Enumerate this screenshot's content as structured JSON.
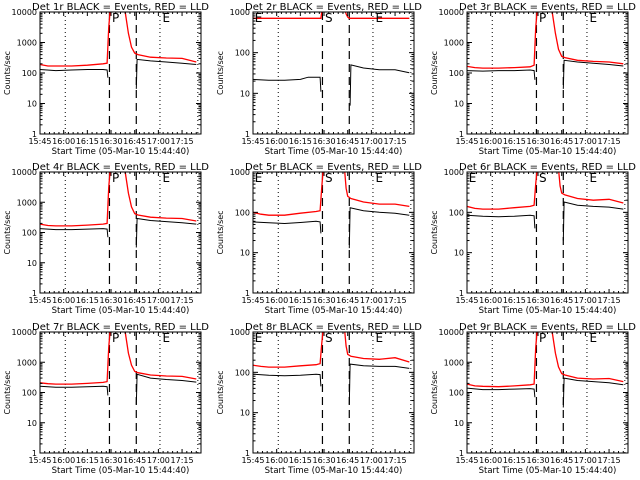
{
  "chart_data": {
    "type": "line",
    "layout": "3x3 grid",
    "x_tick_labels": [
      "15:45",
      "16:00",
      "16:15",
      "16:30",
      "16:45",
      "17:00",
      "17:15"
    ],
    "x_ticks_minutes_from_1545": [
      0,
      15,
      30,
      45,
      60,
      75,
      90
    ],
    "xlim_minutes_from_1545": [
      0,
      102
    ],
    "xlabel": "Start Time (05-Mar-10 15:44:40)",
    "ylabel": "Counts/sec",
    "yscale": "log",
    "dashed_lines_minutes": [
      44,
      61
    ],
    "dotted_lines_minutes": [
      16,
      76,
      100
    ],
    "series_colors": {
      "events": "#000000",
      "lld": "#ff0000"
    },
    "panels": [
      {
        "title": "Det 1r BLACK = Events, RED = LLD",
        "ylim": [
          1,
          10000
        ],
        "y_tick_labels": [
          "1",
          "10",
          "100",
          "1000",
          "10000"
        ],
        "markers": [
          {
            "label": "P",
            "x": 45
          },
          {
            "label": "E",
            "x": 77
          }
        ],
        "series": [
          {
            "name": "Events",
            "x": [
              0,
              10,
              20,
              30,
              40,
              42.5,
              43,
              60.5,
              61,
              61.5,
              70,
              80,
              90,
              99
            ],
            "y": [
              130,
              120,
              125,
              130,
              130,
              125,
              70,
              null,
              30,
              280,
              250,
              230,
              210,
              190
            ]
          },
          {
            "name": "LLD",
            "x": [
              0,
              5,
              10,
              20,
              30,
              40,
              42.5,
              43.5,
              44.5,
              45.5,
              52,
              54,
              56,
              58,
              60,
              62,
              70,
              80,
              90,
              99
            ],
            "y": [
              190,
              170,
              170,
              170,
              180,
              200,
              210,
              3000,
              12000,
              20000,
              20000,
              10000,
              2000,
              700,
              450,
              400,
              330,
              310,
              300,
              230
            ]
          }
        ]
      },
      {
        "title": "Det 2r BLACK = Events, RED = LLD",
        "ylim": [
          1,
          1000
        ],
        "y_tick_labels": [
          "1",
          "10",
          "100",
          "1000"
        ],
        "markers": [
          {
            "label": "E",
            "x": 0.5
          },
          {
            "label": "S",
            "x": 45
          },
          {
            "label": "E",
            "x": 77
          }
        ],
        "series": [
          {
            "name": "Events",
            "x": [
              0,
              10,
              20,
              30,
              35,
              42.5,
              43,
              61,
              61.5,
              62,
              70,
              80,
              90,
              99
            ],
            "y": [
              22,
              21,
              21,
              22,
              25,
              25,
              11,
              null,
              5,
              50,
              42,
              38,
              38,
              32
            ]
          },
          {
            "name": "LLD",
            "x": [
              0,
              10,
              20,
              30,
              43,
              43.5,
              44,
              58,
              59,
              60,
              61,
              70,
              80,
              90,
              99
            ],
            "y": [
              700,
              700,
              700,
              700,
              700,
              1000,
              1200,
              1200,
              900,
              750,
              700,
              700,
              700,
              700,
              700
            ]
          }
        ]
      },
      {
        "title": "Det 3r BLACK = Events, RED = LLD",
        "ylim": [
          1,
          10000
        ],
        "y_tick_labels": [
          "1",
          "10",
          "100",
          "1000",
          "10000"
        ],
        "markers": [
          {
            "label": "P",
            "x": 45
          },
          {
            "label": "E",
            "x": 77
          }
        ],
        "series": [
          {
            "name": "Events",
            "x": [
              0,
              10,
              20,
              30,
              40,
              42.5,
              43,
              60.5,
              61,
              61.5,
              70,
              80,
              90,
              99
            ],
            "y": [
              120,
              115,
              120,
              120,
              125,
              120,
              60,
              null,
              30,
              260,
              230,
              210,
              190,
              170
            ]
          },
          {
            "name": "LLD",
            "x": [
              0,
              5,
              10,
              20,
              30,
              40,
              42.5,
              43.5,
              44.5,
              45.5,
              52,
              54,
              56,
              58,
              60,
              62,
              70,
              80,
              90,
              99
            ],
            "y": [
              165,
              150,
              145,
              145,
              150,
              160,
              180,
              3000,
              12000,
              20000,
              20000,
              10000,
              2000,
              600,
              350,
              320,
              260,
              240,
              230,
              200
            ]
          }
        ]
      },
      {
        "title": "Det 4r BLACK = Events, RED = LLD",
        "ylim": [
          1,
          10000
        ],
        "y_tick_labels": [
          "1",
          "10",
          "100",
          "1000",
          "10000"
        ],
        "markers": [
          {
            "label": "P",
            "x": 45
          },
          {
            "label": "E",
            "x": 77
          }
        ],
        "series": [
          {
            "name": "Events",
            "x": [
              0,
              10,
              20,
              30,
              40,
              42.5,
              43,
              60.5,
              61,
              61.5,
              70,
              80,
              90,
              99
            ],
            "y": [
              135,
              125,
              125,
              130,
              135,
              130,
              70,
              null,
              32,
              290,
              250,
              230,
              210,
              190
            ]
          },
          {
            "name": "LLD",
            "x": [
              0,
              5,
              10,
              20,
              30,
              40,
              42.5,
              43.5,
              44.5,
              45.5,
              52,
              54,
              56,
              58,
              60,
              62,
              70,
              80,
              90,
              99
            ],
            "y": [
              190,
              170,
              165,
              165,
              175,
              190,
              200,
              3000,
              12000,
              20000,
              20000,
              10000,
              2000,
              700,
              420,
              380,
              320,
              300,
              290,
              240
            ]
          }
        ]
      },
      {
        "title": "Det 5r BLACK = Events, RED = LLD",
        "ylim": [
          1,
          1000
        ],
        "y_tick_labels": [
          "1",
          "10",
          "100",
          "1000"
        ],
        "markers": [
          {
            "label": "E",
            "x": 0.5
          },
          {
            "label": "S",
            "x": 45
          },
          {
            "label": "E",
            "x": 77
          }
        ],
        "series": [
          {
            "name": "Events",
            "x": [
              0,
              10,
              20,
              30,
              40,
              42.5,
              43,
              60.5,
              61,
              61.5,
              70,
              80,
              90,
              99
            ],
            "y": [
              58,
              55,
              53,
              56,
              60,
              58,
              30,
              null,
              13,
              130,
              110,
              100,
              95,
              85
            ]
          },
          {
            "name": "LLD",
            "x": [
              0,
              5,
              10,
              20,
              30,
              40,
              42.5,
              43.5,
              44.5,
              58,
              59,
              60,
              62,
              70,
              80,
              90,
              99
            ],
            "y": [
              100,
              90,
              85,
              85,
              95,
              105,
              110,
              400,
              1200,
              1200,
              400,
              250,
              220,
              180,
              160,
              160,
              140
            ]
          }
        ]
      },
      {
        "title": "Det 6r BLACK = Events, RED = LLD",
        "ylim": [
          1,
          1000
        ],
        "y_tick_labels": [
          "1",
          "10",
          "100",
          "1000"
        ],
        "markers": [
          {
            "label": "E",
            "x": 0.5
          },
          {
            "label": "S",
            "x": 45
          },
          {
            "label": "E",
            "x": 77
          }
        ],
        "series": [
          {
            "name": "Events",
            "x": [
              0,
              10,
              20,
              30,
              40,
              42.5,
              43,
              60.5,
              61,
              61.5,
              70,
              80,
              90,
              99
            ],
            "y": [
              85,
              80,
              78,
              80,
              85,
              82,
              40,
              null,
              20,
              180,
              150,
              140,
              135,
              120
            ]
          },
          {
            "name": "LLD",
            "x": [
              0,
              5,
              10,
              20,
              30,
              40,
              42.5,
              43.5,
              44.5,
              58,
              59,
              60,
              62,
              70,
              80,
              90,
              99
            ],
            "y": [
              140,
              125,
              120,
              120,
              130,
              140,
              150,
              500,
              1200,
              1200,
              450,
              300,
              270,
              220,
              200,
              210,
              170
            ]
          }
        ]
      },
      {
        "title": "Det 7r BLACK = Events, RED = LLD",
        "ylim": [
          1,
          10000
        ],
        "y_tick_labels": [
          "1",
          "10",
          "100",
          "1000",
          "10000"
        ],
        "markers": [
          {
            "label": "P",
            "x": 45
          },
          {
            "label": "E",
            "x": 77
          }
        ],
        "series": [
          {
            "name": "Events",
            "x": [
              0,
              10,
              20,
              30,
              40,
              42.5,
              43,
              60.5,
              61,
              61.5,
              70,
              80,
              90,
              99
            ],
            "y": [
              160,
              150,
              150,
              155,
              160,
              155,
              80,
              null,
              40,
              400,
              300,
              270,
              250,
              220
            ]
          },
          {
            "name": "LLD",
            "x": [
              0,
              5,
              10,
              20,
              30,
              40,
              42.5,
              43.5,
              44.5,
              45.5,
              52,
              54,
              56,
              58,
              60,
              62,
              70,
              80,
              90,
              99
            ],
            "y": [
              210,
              195,
              190,
              190,
              200,
              215,
              230,
              3000,
              12000,
              20000,
              20000,
              10000,
              2000,
              800,
              500,
              450,
              380,
              350,
              340,
              280
            ]
          }
        ]
      },
      {
        "title": "Det 8r BLACK = Events, RED = LLD",
        "ylim": [
          1,
          1000
        ],
        "y_tick_labels": [
          "1",
          "10",
          "100",
          "1000"
        ],
        "markers": [
          {
            "label": "E",
            "x": 0.5
          },
          {
            "label": "S",
            "x": 45
          },
          {
            "label": "E",
            "x": 77
          }
        ],
        "series": [
          {
            "name": "Events",
            "x": [
              0,
              10,
              20,
              30,
              40,
              42.5,
              43,
              60.5,
              61,
              61.5,
              70,
              80,
              90,
              99
            ],
            "y": [
              90,
              85,
              82,
              85,
              90,
              88,
              45,
              null,
              16,
              160,
              145,
              140,
              140,
              125
            ]
          },
          {
            "name": "LLD",
            "x": [
              0,
              5,
              10,
              20,
              30,
              40,
              42.5,
              43.5,
              44.5,
              58,
              59,
              60,
              62,
              70,
              80,
              90,
              99
            ],
            "y": [
              150,
              140,
              135,
              135,
              145,
              155,
              165,
              500,
              1200,
              1200,
              450,
              280,
              250,
              220,
              210,
              230,
              180
            ]
          }
        ]
      },
      {
        "title": "Det 9r BLACK = Events, RED = LLD",
        "ylim": [
          1,
          10000
        ],
        "y_tick_labels": [
          "1",
          "10",
          "100",
          "1000",
          "10000"
        ],
        "markers": [
          {
            "label": "P",
            "x": 45
          },
          {
            "label": "E",
            "x": 77
          }
        ],
        "series": [
          {
            "name": "Events",
            "x": [
              0,
              10,
              20,
              30,
              40,
              42.5,
              43,
              60.5,
              61,
              61.5,
              70,
              80,
              90,
              99
            ],
            "y": [
              140,
              125,
              125,
              130,
              135,
              130,
              70,
              null,
              32,
              300,
              250,
              230,
              210,
              180
            ]
          },
          {
            "name": "LLD",
            "x": [
              0,
              5,
              10,
              20,
              30,
              40,
              42.5,
              43.5,
              44.5,
              45.5,
              52,
              54,
              56,
              58,
              60,
              62,
              70,
              80,
              90,
              99
            ],
            "y": [
              190,
              165,
              160,
              155,
              165,
              180,
              190,
              3000,
              12000,
              20000,
              20000,
              10000,
              2000,
              700,
              420,
              380,
              300,
              280,
              290,
              230
            ]
          }
        ]
      }
    ]
  }
}
